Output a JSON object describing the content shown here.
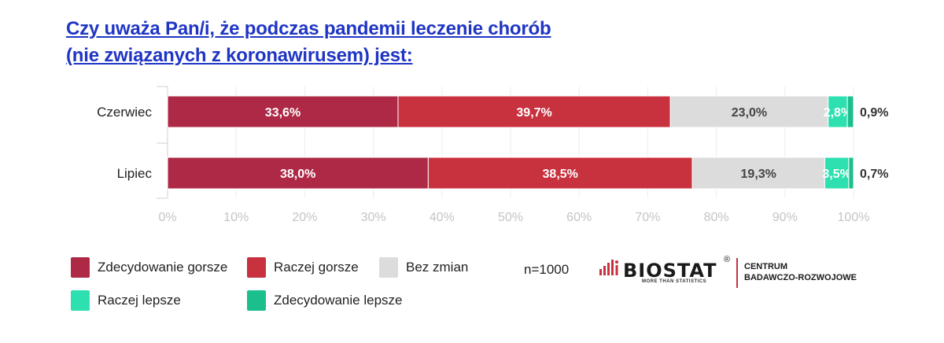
{
  "title": {
    "line1": "Czy uważa Pan/i, że podczas pandemii leczenie chorób",
    "line2": "(nie związanych z koronawirusem) jest:"
  },
  "chart_data": {
    "type": "bar",
    "orientation": "horizontal",
    "stacked": true,
    "categories": [
      "Czerwiec",
      "Lipiec"
    ],
    "series": [
      {
        "name": "Zdecydowanie gorsze",
        "color": "#ad2945",
        "values": [
          33.6,
          38.0
        ],
        "labels": [
          "33,6%",
          "38,0%"
        ]
      },
      {
        "name": "Raczej gorsze",
        "color": "#c8313e",
        "values": [
          39.7,
          38.5
        ],
        "labels": [
          "39,7%",
          "38,5%"
        ]
      },
      {
        "name": "Bez zmian",
        "color": "#dcdcdc",
        "values": [
          23.0,
          19.3
        ],
        "labels": [
          "23,0%",
          "19,3%"
        ]
      },
      {
        "name": "Raczej lepsze",
        "color": "#2ee0b0",
        "values": [
          2.8,
          3.5
        ],
        "labels": [
          "2,8%",
          "3,5%"
        ]
      },
      {
        "name": "Zdecydowanie lepsze",
        "color": "#1bbf8c",
        "values": [
          0.9,
          0.7
        ],
        "labels": [
          "0,9%",
          "0,7%"
        ]
      }
    ],
    "xlim": [
      0,
      100
    ],
    "xticks": [
      "0%",
      "10%",
      "20%",
      "30%",
      "40%",
      "50%",
      "60%",
      "70%",
      "80%",
      "90%",
      "100%"
    ],
    "legend_position": "bottom-left"
  },
  "legend": {
    "items": [
      {
        "label": "Zdecydowanie gorsze",
        "color": "#ad2945"
      },
      {
        "label": "Raczej gorsze",
        "color": "#c8313e"
      },
      {
        "label": "Bez zmian",
        "color": "#dcdcdc"
      },
      {
        "label": "Raczej lepsze",
        "color": "#2ee0b0"
      },
      {
        "label": "Zdecydowanie lepsze",
        "color": "#1bbf8c"
      }
    ]
  },
  "sample": "n=1000",
  "logo": {
    "word": "BIOSTAT",
    "reg": "®",
    "tagline": "MORE THAN STATISTICS",
    "center_line1": "CENTRUM",
    "center_line2": "BADAWCZO-ROZWOJOWE",
    "accent": "#c8313e"
  }
}
